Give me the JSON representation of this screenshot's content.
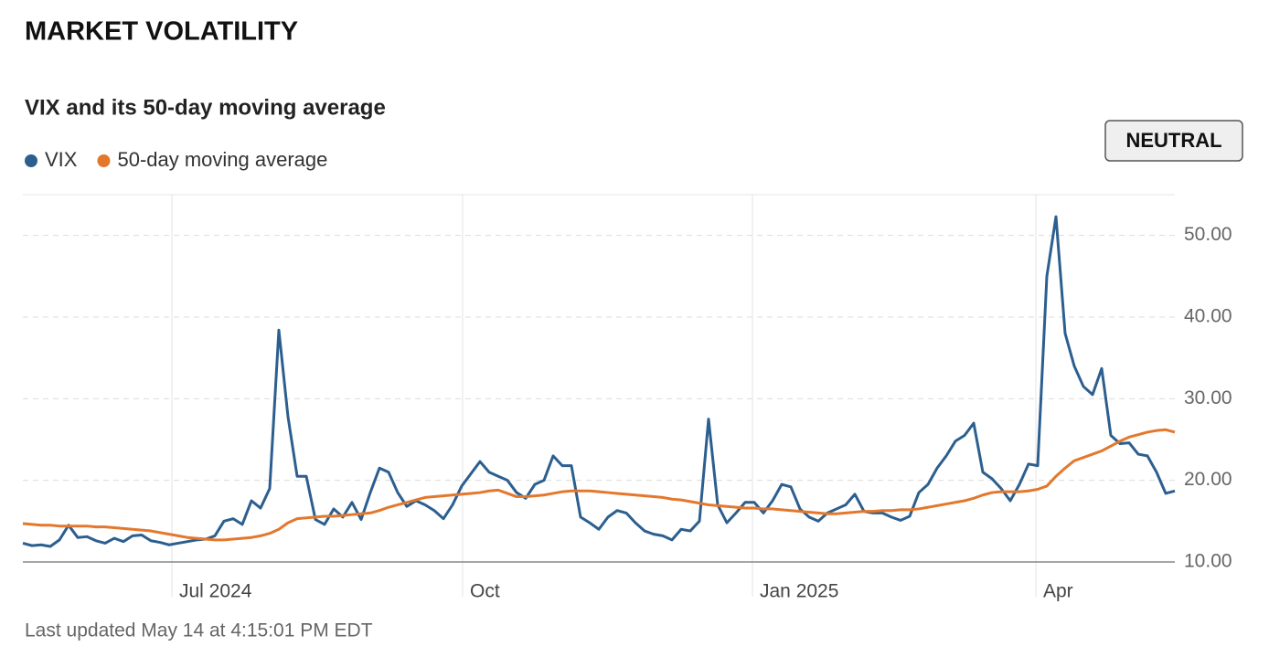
{
  "chart_data": {
    "type": "line",
    "header": "MARKET VOLATILITY",
    "title": "VIX and its 50-day moving average",
    "badge": "NEUTRAL",
    "footer": "Last updated May 14 at 4:15:01 PM EDT",
    "xlim": [
      0,
      126
    ],
    "xticks": [
      {
        "value": 16.3,
        "label": "Jul 2024"
      },
      {
        "value": 48.1,
        "label": "Oct"
      },
      {
        "value": 79.8,
        "label": "Jan 2025"
      },
      {
        "value": 110.8,
        "label": "Apr"
      }
    ],
    "ylim": [
      10,
      55
    ],
    "yticks": [
      {
        "value": 10,
        "label": "10.00"
      },
      {
        "value": 20,
        "label": "20.00"
      },
      {
        "value": 30,
        "label": "30.00"
      },
      {
        "value": 40,
        "label": "40.00"
      },
      {
        "value": 50,
        "label": "50.00"
      }
    ],
    "grid": true,
    "series": [
      {
        "name": "VIX",
        "color": "#2c5f8f",
        "values": [
          12.3,
          12.0,
          12.1,
          11.9,
          12.7,
          14.5,
          13.0,
          13.1,
          12.6,
          12.3,
          12.9,
          12.5,
          13.2,
          13.3,
          12.6,
          12.4,
          12.1,
          12.3,
          12.5,
          12.7,
          12.8,
          13.2,
          15.0,
          15.3,
          14.6,
          17.5,
          16.6,
          19.0,
          38.4,
          27.8,
          20.5,
          20.5,
          15.2,
          14.6,
          16.5,
          15.5,
          17.3,
          15.2,
          18.5,
          21.5,
          21.0,
          18.5,
          16.8,
          17.5,
          17.0,
          16.3,
          15.3,
          17.0,
          19.3,
          20.8,
          22.3,
          21.0,
          20.5,
          20.0,
          18.5,
          17.8,
          19.5,
          20.0,
          23.0,
          21.8,
          21.8,
          15.5,
          14.8,
          14.0,
          15.5,
          16.3,
          16.0,
          14.8,
          13.8,
          13.4,
          13.2,
          12.7,
          14.0,
          13.8,
          15.0,
          27.5,
          17.0,
          14.8,
          16.0,
          17.3,
          17.3,
          16.0,
          17.5,
          19.5,
          19.2,
          16.5,
          15.5,
          15.0,
          16.0,
          16.5,
          17.0,
          18.3,
          16.2,
          16.0,
          16.0,
          15.5,
          15.1,
          15.6,
          18.5,
          19.5,
          21.5,
          23.0,
          24.8,
          25.5,
          27.0,
          21.0,
          20.2,
          19.0,
          17.5,
          19.5,
          22.0,
          21.8,
          45.0,
          52.3,
          38.0,
          34.0,
          31.5,
          30.5,
          33.7,
          25.5,
          24.5,
          24.6,
          23.2,
          23.0,
          21.0,
          18.4,
          18.7
        ]
      },
      {
        "name": "50-day moving average",
        "color": "#e3782d",
        "values": [
          14.7,
          14.6,
          14.5,
          14.5,
          14.4,
          14.4,
          14.4,
          14.4,
          14.3,
          14.3,
          14.2,
          14.1,
          14.0,
          13.9,
          13.8,
          13.6,
          13.4,
          13.2,
          13.0,
          12.9,
          12.8,
          12.7,
          12.7,
          12.8,
          12.9,
          13.0,
          13.2,
          13.5,
          14.0,
          14.8,
          15.3,
          15.4,
          15.5,
          15.6,
          15.6,
          15.7,
          15.8,
          15.9,
          16.0,
          16.3,
          16.7,
          17.0,
          17.3,
          17.6,
          17.9,
          18.0,
          18.1,
          18.2,
          18.3,
          18.4,
          18.5,
          18.7,
          18.8,
          18.4,
          18.0,
          18.0,
          18.1,
          18.2,
          18.4,
          18.6,
          18.7,
          18.7,
          18.7,
          18.6,
          18.5,
          18.4,
          18.3,
          18.2,
          18.1,
          18.0,
          17.9,
          17.7,
          17.6,
          17.4,
          17.2,
          17.0,
          16.9,
          16.8,
          16.7,
          16.6,
          16.6,
          16.5,
          16.5,
          16.4,
          16.3,
          16.2,
          16.1,
          16.0,
          15.9,
          15.9,
          16.0,
          16.1,
          16.2,
          16.2,
          16.3,
          16.3,
          16.4,
          16.4,
          16.5,
          16.7,
          16.9,
          17.1,
          17.3,
          17.5,
          17.8,
          18.2,
          18.5,
          18.6,
          18.6,
          18.6,
          18.7,
          18.9,
          19.3,
          20.5,
          21.5,
          22.4,
          22.8,
          23.2,
          23.6,
          24.2,
          24.8,
          25.3,
          25.6,
          25.9,
          26.1,
          26.2,
          25.9
        ]
      }
    ]
  }
}
